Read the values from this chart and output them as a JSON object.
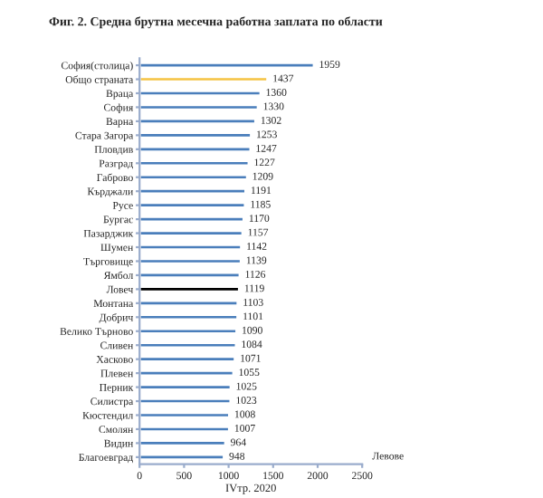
{
  "chart_data": {
    "type": "bar",
    "orientation": "horizontal",
    "title": "Фиг. 2. Средна брутна месечна работна заплата по области",
    "xlabel": "IVтр. 2020",
    "annotations": [
      "Левове"
    ],
    "categories": [
      "София(столица)",
      "Общо страната",
      "Враца",
      "София",
      "Варна",
      "Стара Загора",
      "Пловдив",
      "Разград",
      "Габрово",
      "Кърджали",
      "Русе",
      "Бургас",
      "Пазарджик",
      "Шумен",
      "Търговище",
      "Ямбол",
      "Ловеч",
      "Монтана",
      "Добрич",
      "Велико Търново",
      "Сливен",
      "Хасково",
      "Плевен",
      "Перник",
      "Силистра",
      "Кюстендил",
      "Смолян",
      "Видин",
      "Благоевград"
    ],
    "values": [
      1959,
      1437,
      1360,
      1330,
      1302,
      1253,
      1247,
      1227,
      1209,
      1191,
      1185,
      1170,
      1157,
      1142,
      1139,
      1126,
      1119,
      1103,
      1101,
      1090,
      1084,
      1071,
      1055,
      1025,
      1023,
      1008,
      1007,
      964,
      948
    ],
    "colors": [
      "#4a7ebb",
      "#f5c342",
      "#4a7ebb",
      "#4a7ebb",
      "#4a7ebb",
      "#4a7ebb",
      "#4a7ebb",
      "#4a7ebb",
      "#4a7ebb",
      "#4a7ebb",
      "#4a7ebb",
      "#4a7ebb",
      "#4a7ebb",
      "#4a7ebb",
      "#4a7ebb",
      "#4a7ebb",
      "#000000",
      "#4a7ebb",
      "#4a7ebb",
      "#4a7ebb",
      "#4a7ebb",
      "#4a7ebb",
      "#4a7ebb",
      "#4a7ebb",
      "#4a7ebb",
      "#4a7ebb",
      "#4a7ebb",
      "#4a7ebb",
      "#4a7ebb"
    ],
    "xlim": [
      0,
      2500
    ],
    "xticks": [
      0,
      500,
      1000,
      1500,
      2000,
      2500
    ],
    "data_labels": true,
    "grid": false,
    "legend": false
  }
}
